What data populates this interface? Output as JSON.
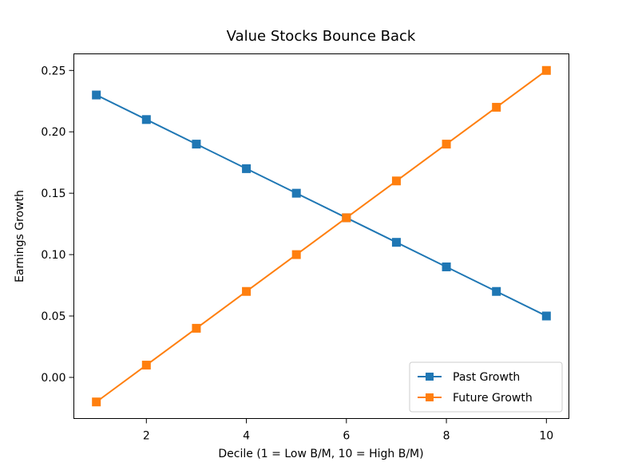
{
  "chart_data": {
    "type": "line",
    "title": "Value Stocks Bounce Back",
    "xlabel": "Decile (1 = Low B/M, 10 = High B/M)",
    "ylabel": "Earnings Growth",
    "x": [
      1,
      2,
      3,
      4,
      5,
      6,
      7,
      8,
      9,
      10
    ],
    "xlim": [
      0.55,
      10.45
    ],
    "ylim": [
      -0.0335,
      0.2635
    ],
    "xticks": [
      "2",
      "4",
      "6",
      "8",
      "10"
    ],
    "yticks": [
      "0.00",
      "0.05",
      "0.10",
      "0.15",
      "0.20",
      "0.25"
    ],
    "grid": false,
    "legend_position": "lower-right",
    "marker": "square",
    "series": [
      {
        "name": "Past Growth",
        "color": "#1f77b4",
        "values": [
          0.23,
          0.21,
          0.19,
          0.17,
          0.15,
          0.13,
          0.11,
          0.09,
          0.07,
          0.05
        ]
      },
      {
        "name": "Future Growth",
        "color": "#ff7f0e",
        "values": [
          -0.02,
          0.01,
          0.04,
          0.07,
          0.1,
          0.13,
          0.16,
          0.19,
          0.22,
          0.25
        ]
      }
    ]
  }
}
